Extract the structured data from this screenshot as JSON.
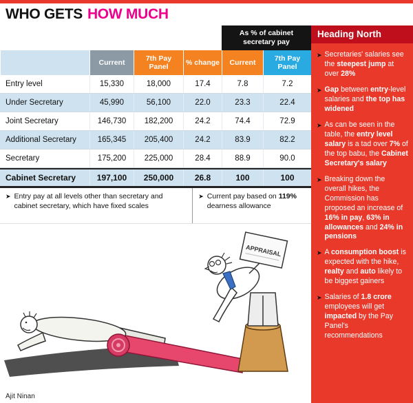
{
  "bullet_char": "➤",
  "colors": {
    "sidebar_red": "#e8392b",
    "header_dark_red": "#bf0f1d",
    "title_pink": "#ec008c",
    "orange": "#f58220",
    "blue": "#29abe2",
    "gray_header": "#8b9aa5",
    "row_blue": "#cfe2ef",
    "black_band": "#141414"
  },
  "title": {
    "black": "WHO GETS",
    "pink": "HOW MUCH"
  },
  "table": {
    "span_header": "As % of cabinet secretary pay",
    "header": [
      {
        "label": "",
        "bg": "#cfe2ef",
        "fg": "#000000"
      },
      {
        "label": "Current",
        "bg": "#8b9aa5",
        "fg": "#ffffff"
      },
      {
        "label": "7th Pay Panel",
        "bg": "#f58220",
        "fg": "#ffffff"
      },
      {
        "label": "% change",
        "bg": "#f58220",
        "fg": "#ffffff"
      },
      {
        "label": "Current",
        "bg": "#f58220",
        "fg": "#ffffff"
      },
      {
        "label": "7th Pay Panel",
        "bg": "#29abe2",
        "fg": "#ffffff"
      }
    ],
    "rows": [
      {
        "label": "Entry level",
        "cells": [
          "15,330",
          "18,000",
          "17.4",
          "7.8",
          "7.2"
        ],
        "shade": false,
        "bold": false
      },
      {
        "label": "Under Secretary",
        "cells": [
          "45,990",
          "56,100",
          "22.0",
          "23.3",
          "22.4"
        ],
        "shade": true,
        "bold": false
      },
      {
        "label": "Joint Secretary",
        "cells": [
          "146,730",
          "182,200",
          "24.2",
          "74.4",
          "72.9"
        ],
        "shade": false,
        "bold": false
      },
      {
        "label": "Additional Secretary",
        "cells": [
          "165,345",
          "205,400",
          "24.2",
          "83.9",
          "82.2"
        ],
        "shade": true,
        "bold": false
      },
      {
        "label": "Secretary",
        "cells": [
          "175,200",
          "225,000",
          "28.4",
          "88.9",
          "90.0"
        ],
        "shade": false,
        "bold": false
      },
      {
        "label": "Cabinet Secretary",
        "cells": [
          "197,100",
          "250,000",
          "26.8",
          "100",
          "100"
        ],
        "shade": true,
        "bold": true
      }
    ]
  },
  "footnotes": [
    {
      "segments": [
        {
          "t": "Entry pay at all levels other than secretary and cabinet secretary, which have fixed scales",
          "b": false
        }
      ]
    },
    {
      "segments": [
        {
          "t": "Current pay based on ",
          "b": false
        },
        {
          "t": "119%",
          "b": true
        },
        {
          "t": " dearness allowance",
          "b": false
        }
      ]
    }
  ],
  "cartoon": {
    "appraisal_label": "APPRAISAL",
    "credit": "Ajit Ninan"
  },
  "sidebar": {
    "header": "Heading North",
    "bullets": [
      {
        "segments": [
          {
            "t": "Secretaries' salaries see the ",
            "b": false
          },
          {
            "t": "steepest jump",
            "b": true
          },
          {
            "t": " at over ",
            "b": false
          },
          {
            "t": "28%",
            "b": true
          }
        ]
      },
      {
        "segments": [
          {
            "t": "Gap",
            "b": true
          },
          {
            "t": " between ",
            "b": false
          },
          {
            "t": "entry",
            "b": true
          },
          {
            "t": "-level salaries and ",
            "b": false
          },
          {
            "t": "the top has widened",
            "b": true
          }
        ]
      },
      {
        "segments": [
          {
            "t": "As can be seen in the table, the ",
            "b": false
          },
          {
            "t": "entry level salary",
            "b": true
          },
          {
            "t": " is a tad over ",
            "b": false
          },
          {
            "t": "7%",
            "b": true
          },
          {
            "t": " of the top babu, the ",
            "b": false
          },
          {
            "t": "Cabinet Secretary's salary",
            "b": true
          }
        ]
      },
      {
        "segments": [
          {
            "t": "Breaking down the overall hikes, the Commission has proposed an increase of ",
            "b": false
          },
          {
            "t": "16% in pay",
            "b": true
          },
          {
            "t": ", ",
            "b": false
          },
          {
            "t": "63% in allowances",
            "b": true
          },
          {
            "t": " and ",
            "b": false
          },
          {
            "t": "24% in pensions",
            "b": true
          }
        ]
      },
      {
        "segments": [
          {
            "t": "A ",
            "b": false
          },
          {
            "t": "consumption boost",
            "b": true
          },
          {
            "t": " is expected with the hike, ",
            "b": false
          },
          {
            "t": "realty",
            "b": true
          },
          {
            "t": " and ",
            "b": false
          },
          {
            "t": "auto",
            "b": true
          },
          {
            "t": " likely to be biggest gainers",
            "b": false
          }
        ]
      },
      {
        "segments": [
          {
            "t": "Salaries of ",
            "b": false
          },
          {
            "t": "1.8 crore",
            "b": true
          },
          {
            "t": " employees will get ",
            "b": false
          },
          {
            "t": "impacted",
            "b": true
          },
          {
            "t": " by the Pay Panel's recommendations",
            "b": false
          }
        ]
      }
    ]
  }
}
